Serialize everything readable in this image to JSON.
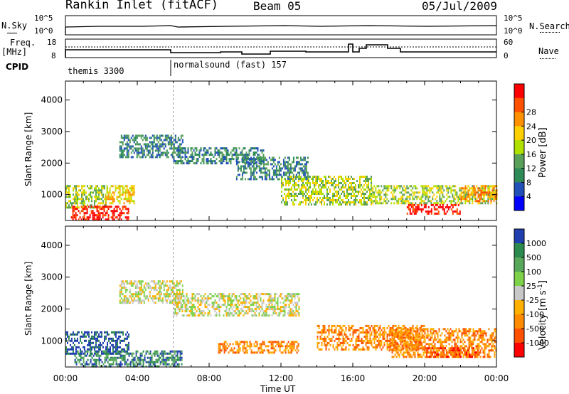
{
  "header": {
    "station": "Rankin Inlet (fitACF)",
    "beam": "Beam 05",
    "date": "05/Jul/2009"
  },
  "summary_labels": {
    "nsky": "N.Sky",
    "freq_top": "Freq.",
    "freq_unit": "[MHz]",
    "cpid": "CPID",
    "nsearch": "N.Search",
    "nave": "Nave"
  },
  "summary_ticks": {
    "nsky_hi": "10^5",
    "nsky_lo": "10^0",
    "freq_hi": "18",
    "freq_lo": "8",
    "nave_hi": "60",
    "nave_lo": "0"
  },
  "cpid_segments": [
    {
      "label": "themis 3300",
      "start": 0
    },
    {
      "label": "normalsound (fast) 157",
      "start": 6
    }
  ],
  "colors": {
    "power_scale": [
      "#0000ff",
      "#2050b8",
      "#2e8b57",
      "#5aa05a",
      "#b0e000",
      "#ffd000",
      "#ff9000",
      "#ff5000",
      "#ff0000"
    ],
    "velocity_scale": [
      "#2040b0",
      "#2d8a4f",
      "#57a85a",
      "#7dd24a",
      "#c8c8c8",
      "#ffb000",
      "#ff8c00",
      "#ff5000",
      "#ff0000"
    ]
  },
  "chart_data": [
    {
      "type": "heatmap",
      "name": "power",
      "xlabel": "Time UT",
      "ylabel": "Slant Range [km]",
      "colorbar_label": "Power [dB]",
      "colorbar_ticks": [
        "4",
        "8",
        "12",
        "16",
        "20",
        "24",
        "28"
      ],
      "colorbar_values": [
        4,
        8,
        12,
        16,
        20,
        24,
        28
      ],
      "xlim": [
        0,
        24
      ],
      "ylim": [
        180,
        4600
      ],
      "x_ticks": [
        "00:00",
        "04:00",
        "08:00",
        "12:00",
        "16:00",
        "20:00",
        "00:00"
      ],
      "y_ticks": [
        1000,
        2000,
        3000,
        4000
      ],
      "bands": [
        {
          "t0": 0.0,
          "t1": 2.3,
          "r0": 600,
          "r1": 1300,
          "level": 4
        },
        {
          "t0": 0.3,
          "t1": 3.5,
          "r0": 200,
          "r1": 650,
          "level": 8
        },
        {
          "t0": 2.2,
          "t1": 3.8,
          "r0": 700,
          "r1": 1300,
          "level": 5
        },
        {
          "t0": 3.0,
          "t1": 6.5,
          "r0": 2200,
          "r1": 2900,
          "level": 2
        },
        {
          "t0": 6.0,
          "t1": 11.0,
          "r0": 2000,
          "r1": 2500,
          "level": 2
        },
        {
          "t0": 9.5,
          "t1": 13.5,
          "r0": 1500,
          "r1": 2200,
          "level": 2
        },
        {
          "t0": 12.0,
          "t1": 17.0,
          "r0": 700,
          "r1": 1600,
          "level": 4
        },
        {
          "t0": 17.0,
          "t1": 24.0,
          "r0": 700,
          "r1": 1300,
          "level": 4
        },
        {
          "t0": 19.0,
          "t1": 22.0,
          "r0": 400,
          "r1": 700,
          "level": 8
        },
        {
          "t0": 22.0,
          "t1": 24.0,
          "r0": 800,
          "r1": 1300,
          "level": 6
        }
      ]
    },
    {
      "type": "heatmap",
      "name": "velocity",
      "xlabel": "Time UT",
      "ylabel": "Slant Range [km]",
      "colorbar_label": "Velocity [m s^-1]",
      "colorbar_ticks": [
        "1000",
        "500",
        "100",
        "25",
        "-25",
        "-100",
        "-500",
        "-1000"
      ],
      "colorbar_values": [
        1000,
        500,
        100,
        25,
        -25,
        -100,
        -500,
        -1000
      ],
      "xlim": [
        0,
        24
      ],
      "ylim": [
        180,
        4600
      ],
      "x_ticks": [
        "00:00",
        "04:00",
        "08:00",
        "12:00",
        "16:00",
        "20:00",
        "00:00"
      ],
      "y_ticks": [
        1000,
        2000,
        3000,
        4000
      ],
      "bands": [
        {
          "t0": 0.0,
          "t1": 3.5,
          "r0": 600,
          "r1": 1300,
          "level": 0
        },
        {
          "t0": 0.5,
          "t1": 6.5,
          "r0": 200,
          "r1": 700,
          "level": 1
        },
        {
          "t0": 3.0,
          "t1": 6.5,
          "r0": 2200,
          "r1": 2900,
          "level": 4
        },
        {
          "t0": 6.0,
          "t1": 13.0,
          "r0": 1800,
          "r1": 2500,
          "level": 4
        },
        {
          "t0": 8.5,
          "t1": 13.0,
          "r0": 600,
          "r1": 1000,
          "level": 6
        },
        {
          "t0": 14.0,
          "t1": 20.0,
          "r0": 700,
          "r1": 1500,
          "level": 6
        },
        {
          "t0": 18.0,
          "t1": 24.0,
          "r0": 500,
          "r1": 1400,
          "level": 6
        },
        {
          "t0": 20.0,
          "t1": 23.0,
          "r0": 500,
          "r1": 800,
          "level": 7
        }
      ]
    }
  ]
}
